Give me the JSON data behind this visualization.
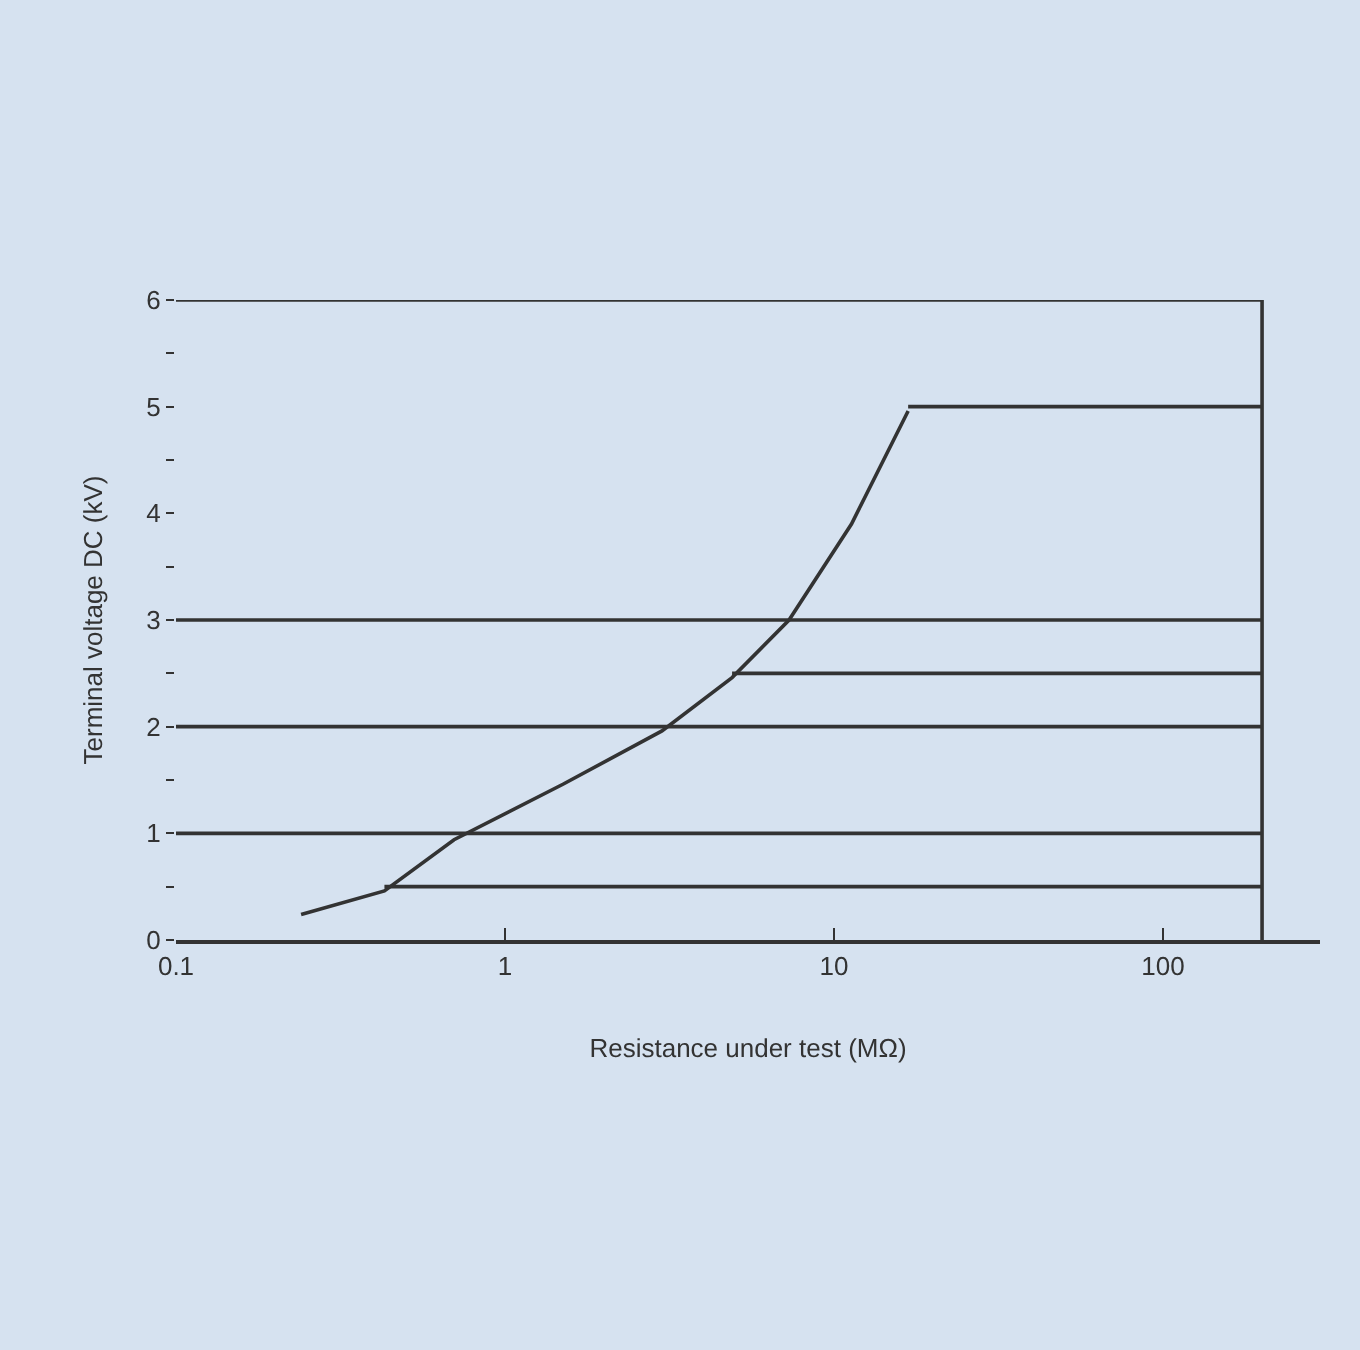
{
  "chart_data": {
    "type": "line",
    "xlabel": "Resistance under test (MΩ)",
    "ylabel": "Terminal voltage DC (kV)",
    "log": "x",
    "xlim": [
      0.1,
      300
    ],
    "ylim": [
      0,
      6
    ],
    "xticks": [
      0.1,
      1,
      10,
      100
    ],
    "yticks": [
      0,
      {
        "value": 0.5,
        "label": null
      },
      1,
      {
        "value": 1.5,
        "label": null
      },
      2,
      {
        "value": 2.5,
        "label": null
      },
      3,
      {
        "value": 3.5,
        "label": null
      },
      4,
      {
        "value": 4.5,
        "label": null
      },
      5,
      {
        "value": 5.5,
        "label": null
      },
      6
    ],
    "grid": false,
    "marker": "none",
    "line_style": "solid",
    "series": [
      {
        "color": "#333333",
        "x": [
          0.24,
          0.43,
          0.7,
          1.5,
          3.0,
          4.9,
          7.3,
          11.3,
          16.8
        ],
        "values": [
          0.24,
          0.46,
          0.94,
          1.46,
          1.96,
          2.46,
          3.0,
          3.9,
          4.96
        ]
      },
      {
        "color": "#333333",
        "x": [
          16.8,
          200
        ],
        "values": [
          5,
          5
        ]
      },
      {
        "color": "#333333",
        "x": [
          4.9,
          200
        ],
        "values": [
          2.5,
          2.5
        ]
      },
      {
        "color": "#333333",
        "x": [
          0.43,
          200
        ],
        "values": [
          0.5,
          0.5
        ]
      },
      {
        "color": "#333333",
        "x": [
          0.1,
          200
        ],
        "values": [
          6,
          6
        ]
      },
      {
        "color": "#333333",
        "x": [
          0.1,
          200
        ],
        "values": [
          3,
          3
        ]
      },
      {
        "color": "#333333",
        "x": [
          0.1,
          200
        ],
        "values": [
          2,
          2
        ]
      },
      {
        "color": "#333333",
        "x": [
          0.1,
          200
        ],
        "values": [
          1,
          1
        ]
      },
      {
        "color": "#333333",
        "x": [
          200,
          200
        ],
        "values": [
          0,
          6
        ]
      }
    ]
  }
}
